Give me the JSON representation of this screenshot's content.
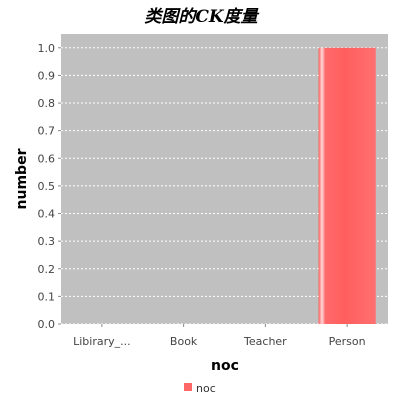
{
  "chart_data": {
    "type": "bar",
    "title": "类图的CK度量",
    "xlabel": "noc",
    "ylabel": "number",
    "categories": [
      "Libirary_...",
      "Book",
      "Teacher",
      "Person"
    ],
    "series": [
      {
        "name": "noc",
        "values": [
          0,
          0,
          0,
          1.0
        ]
      }
    ],
    "ylim": [
      0,
      1.05
    ],
    "yticks": [
      "0.0",
      "0.1",
      "0.2",
      "0.3",
      "0.4",
      "0.5",
      "0.6",
      "0.7",
      "0.8",
      "0.9",
      "1.0"
    ],
    "grid": true,
    "legend_position": "bottom",
    "colors": {
      "plot_background": "#c0c0c0",
      "bar": "#ff6666",
      "grid": "#ffffff"
    }
  }
}
